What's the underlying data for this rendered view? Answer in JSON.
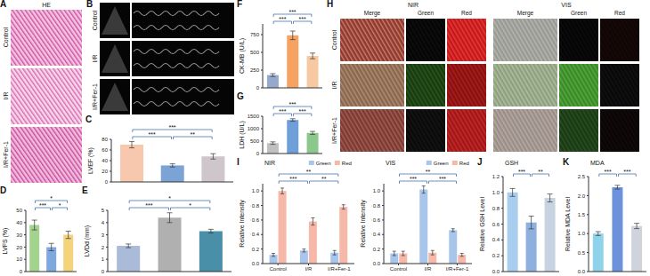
{
  "chart_data": [
    {
      "type": "bar",
      "panel": "C",
      "y_label": "LVEF (%)",
      "categories": [
        null,
        null,
        null
      ],
      "values": [
        70,
        31,
        48
      ],
      "errors": [
        6,
        3,
        5
      ],
      "colors": [
        "#f8c8ae",
        "#7ba3d6",
        "#cfc6cc"
      ],
      "ylim": [
        0,
        80
      ],
      "yticks": [
        0,
        20,
        40,
        60,
        80
      ],
      "tick_labels": "y",
      "significance": [
        {
          "from": 0,
          "to": 1,
          "label": "***"
        },
        {
          "from": 1,
          "to": 2,
          "label": "**"
        },
        {
          "from": 0,
          "to": 2,
          "label": "***"
        }
      ]
    },
    {
      "type": "bar",
      "panel": "D",
      "y_label": "LVFS (%)",
      "categories": [
        null,
        null,
        null
      ],
      "values": [
        38,
        20,
        30
      ],
      "errors": [
        4,
        3,
        3
      ],
      "colors": [
        "#a3d48e",
        "#7ea8de",
        "#f5d37a"
      ],
      "ylim": [
        0,
        50
      ],
      "yticks": [
        0,
        10,
        20,
        30,
        40,
        50
      ],
      "tick_labels": "y",
      "significance": [
        {
          "from": 0,
          "to": 1,
          "label": "***"
        },
        {
          "from": 1,
          "to": 2,
          "label": "*"
        },
        {
          "from": 0,
          "to": 2,
          "label": "*"
        }
      ]
    },
    {
      "type": "bar",
      "panel": "E",
      "y_label": "LVDd (mm)",
      "categories": [
        null,
        null,
        null
      ],
      "values": [
        2.1,
        4.4,
        3.3
      ],
      "errors": [
        0.15,
        0.4,
        0.15
      ],
      "colors": [
        "#a9bbd8",
        "#b0b0b0",
        "#4a8fa8"
      ],
      "ylim": [
        0,
        5
      ],
      "yticks": [
        0,
        1,
        2,
        3,
        4,
        5
      ],
      "tick_labels": "y",
      "significance": [
        {
          "from": 0,
          "to": 1,
          "label": "***"
        },
        {
          "from": 1,
          "to": 2,
          "label": "*"
        },
        {
          "from": 0,
          "to": 2,
          "label": "*"
        }
      ]
    },
    {
      "type": "bar",
      "panel": "F",
      "y_label": "CK-MB (U/L)",
      "categories": [
        null,
        null,
        null
      ],
      "values": [
        180,
        740,
        450
      ],
      "errors": [
        20,
        60,
        40
      ],
      "colors": [
        "#95a9cc",
        "#f5a263",
        "#f7c9a3"
      ],
      "ylim": [
        0,
        900
      ],
      "yticks": [
        0,
        250,
        500,
        750
      ],
      "tick_labels": "y",
      "significance": [
        {
          "from": 0,
          "to": 1,
          "label": "***"
        },
        {
          "from": 1,
          "to": 2,
          "label": "***"
        },
        {
          "from": 0,
          "to": 2,
          "label": "***"
        }
      ]
    },
    {
      "type": "bar",
      "panel": "G",
      "y_label": "LDH (U/L)",
      "categories": [
        null,
        null,
        null
      ],
      "values": [
        420,
        1350,
        830
      ],
      "errors": [
        50,
        50,
        60
      ],
      "colors": [
        "#c0c0c0",
        "#6e9fd8",
        "#8cc78b"
      ],
      "ylim": [
        0,
        1500
      ],
      "yticks": [
        0,
        500,
        1000,
        1500
      ],
      "tick_labels": "y",
      "significance": [
        {
          "from": 0,
          "to": 1,
          "label": "***"
        },
        {
          "from": 1,
          "to": 2,
          "label": "***"
        },
        {
          "from": 0,
          "to": 2,
          "label": "***"
        }
      ]
    },
    {
      "type": "bar",
      "panel": "I",
      "title": "NIR",
      "y_label": "Relative Intensity",
      "categories": [
        "Control",
        "I/R",
        "I/R+Fer-1"
      ],
      "series": [
        {
          "name": "Green",
          "color": "#a8c5ec",
          "values": [
            0.12,
            0.18,
            0.15
          ],
          "errors": [
            0.02,
            0.02,
            0.03
          ]
        },
        {
          "name": "Red",
          "color": "#f6b8a8",
          "values": [
            1.0,
            0.58,
            0.78
          ],
          "errors": [
            0.04,
            0.05,
            0.03
          ]
        }
      ],
      "legend": "top-right",
      "ylim": [
        0,
        1.1
      ],
      "yticks": [
        {
          "value": 0,
          "label": "0.0"
        },
        0.2,
        0.4,
        0.6,
        0.8,
        {
          "value": 1,
          "label": "1.0"
        }
      ],
      "significance": [
        {
          "from": 0,
          "to": 1,
          "label": "***"
        },
        {
          "from": 1,
          "to": 2,
          "label": "**"
        },
        {
          "from": 0,
          "to": 2,
          "label": "**"
        }
      ]
    },
    {
      "type": "bar",
      "title": "VIS",
      "y_label": "Relative Intensity",
      "categories": [
        "Control",
        "I/R",
        "I/R+Fer-1"
      ],
      "series": [
        {
          "name": "Green",
          "color": "#a8c5ec",
          "values": [
            0.14,
            1.02,
            0.46
          ],
          "errors": [
            0.03,
            0.05,
            0.02
          ]
        },
        {
          "name": "Red",
          "color": "#f6b8a8",
          "values": [
            0.14,
            0.15,
            0.12
          ],
          "errors": [
            0.03,
            0.03,
            0.02
          ]
        }
      ],
      "legend": "top-right",
      "ylim": [
        0,
        1.1
      ],
      "yticks": [
        {
          "value": 0,
          "label": "0.0"
        },
        0.2,
        0.4,
        0.6,
        0.8,
        {
          "value": 1,
          "label": "1.0"
        }
      ],
      "significance": [
        {
          "from": 0,
          "to": 1,
          "label": "***"
        },
        {
          "from": 1,
          "to": 2,
          "label": "***"
        },
        {
          "from": 0,
          "to": 2,
          "label": "**"
        }
      ]
    },
    {
      "type": "bar",
      "panel": "J",
      "title": "GSH",
      "y_label": "Relative GSH Level",
      "categories": [
        null,
        null,
        null
      ],
      "values": [
        1.0,
        0.62,
        0.93
      ],
      "errors": [
        0.05,
        0.08,
        0.05
      ],
      "colors": [
        "#a8cdee",
        "#8eb0de",
        "#c7d3e0"
      ],
      "ylim": [
        0,
        1.2
      ],
      "yticks": [
        {
          "value": 0,
          "label": "0.0"
        },
        0.2,
        0.4,
        0.6,
        0.8,
        {
          "value": 1,
          "label": "1.0"
        },
        1.2
      ],
      "tick_labels": "y",
      "significance": [
        {
          "from": 0,
          "to": 1,
          "label": "***"
        },
        {
          "from": 1,
          "to": 2,
          "label": "**"
        }
      ]
    },
    {
      "type": "bar",
      "panel": "K",
      "title": "MDA",
      "y_label": "Relative MDA Level",
      "categories": [
        null,
        null,
        null
      ],
      "values": [
        1.0,
        2.22,
        1.2
      ],
      "errors": [
        0.05,
        0.05,
        0.07
      ],
      "colors": [
        "#8fd3ea",
        "#6d92dc",
        "#cfd4dc"
      ],
      "ylim": [
        0,
        2.5
      ],
      "yticks": [
        {
          "value": 0,
          "label": "0.0"
        },
        0.5,
        {
          "value": 1,
          "label": "1.0"
        },
        1.5,
        {
          "value": 2,
          "label": "2.0"
        },
        2.5
      ],
      "tick_labels": "y",
      "significance": [
        {
          "from": 0,
          "to": 1,
          "label": "***"
        },
        {
          "from": 1,
          "to": 2,
          "label": "***"
        }
      ]
    }
  ],
  "image_panels": [
    {
      "panel": "A",
      "title": "HE",
      "rows": [
        "Control",
        "I/R",
        "I/R+Fer-1"
      ]
    },
    {
      "panel": "B",
      "rows": [
        "Control",
        "I/R",
        "I/R+Fer-1"
      ]
    },
    {
      "panel": "H",
      "groups": [
        {
          "title": "NIR",
          "columns": [
            "Merge",
            "Green",
            "Red"
          ]
        },
        {
          "title": "VIS",
          "columns": [
            "Merge",
            "Green",
            "Red"
          ]
        }
      ],
      "rows": [
        "Control",
        "I/R",
        "I/R+Fer-1"
      ]
    }
  ]
}
